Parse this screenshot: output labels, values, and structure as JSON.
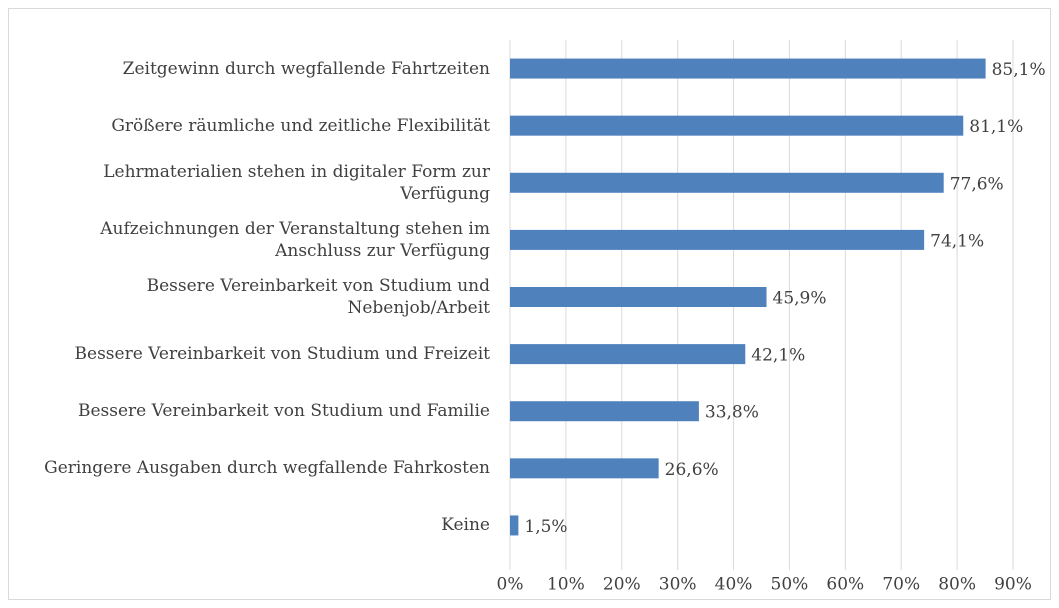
{
  "chart_data": {
    "type": "bar",
    "orientation": "horizontal",
    "categories": [
      "Zeitgewinn durch wegfallende Fahrtzeiten",
      "Größere räumliche und zeitliche Flexibilität",
      "Lehrmaterialien stehen in digitaler Form zur Verfügung",
      "Aufzeichnungen der Veranstaltung stehen im Anschluss zur Verfügung",
      "Bessere Vereinbarkeit von Studium und Nebenjob/Arbeit",
      "Bessere Vereinbarkeit von Studium und Freizeit",
      "Bessere Vereinbarkeit von Studium und Familie",
      "Geringere Ausgaben durch wegfallende Fahrkosten",
      "Keine"
    ],
    "values": [
      85.1,
      81.1,
      77.6,
      74.1,
      45.9,
      42.1,
      33.8,
      26.6,
      1.5
    ],
    "value_labels": [
      "85,1%",
      "81,1%",
      "77,6%",
      "74,1%",
      "45,9%",
      "42,1%",
      "33,8%",
      "26,6%",
      "1,5%"
    ],
    "color": "#4f81bd",
    "xlim": [
      0,
      90
    ],
    "xticks": [
      {
        "value": 0,
        "label": "0%"
      },
      {
        "value": 10,
        "label": "10%"
      },
      {
        "value": 20,
        "label": "20%"
      },
      {
        "value": 30,
        "label": "30%"
      },
      {
        "value": 40,
        "label": "40%"
      },
      {
        "value": 50,
        "label": "50%"
      },
      {
        "value": 60,
        "label": "60%"
      },
      {
        "value": 70,
        "label": "70%"
      },
      {
        "value": 80,
        "label": "80%"
      },
      {
        "value": 90,
        "label": "90%"
      }
    ],
    "grid": true
  }
}
